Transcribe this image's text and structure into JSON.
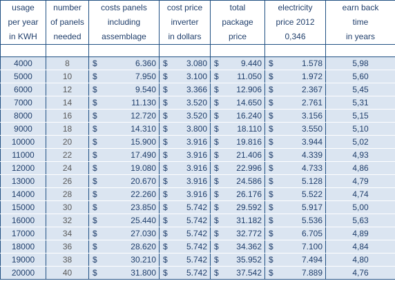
{
  "headers": [
    [
      "usage",
      "per year",
      "in KWH"
    ],
    [
      "number",
      "of panels",
      "needed"
    ],
    [
      "costs panels",
      "including",
      "assemblage"
    ],
    [
      "cost price",
      "inverter",
      "in dollars"
    ],
    [
      "total",
      "package",
      "price"
    ],
    [
      "electricity",
      "price 2012",
      "0,346"
    ],
    [
      "earn back",
      "time",
      "in years"
    ]
  ],
  "currency_symbol": "$",
  "rows": [
    {
      "usage": "4000",
      "panels": "8",
      "panel_cost": "6.360",
      "inverter": "3.080",
      "total": "9.440",
      "electricity": "1.578",
      "earn_back": "5,98"
    },
    {
      "usage": "5000",
      "panels": "10",
      "panel_cost": "7.950",
      "inverter": "3.100",
      "total": "11.050",
      "electricity": "1.972",
      "earn_back": "5,60"
    },
    {
      "usage": "6000",
      "panels": "12",
      "panel_cost": "9.540",
      "inverter": "3.366",
      "total": "12.906",
      "electricity": "2.367",
      "earn_back": "5,45"
    },
    {
      "usage": "7000",
      "panels": "14",
      "panel_cost": "11.130",
      "inverter": "3.520",
      "total": "14.650",
      "electricity": "2.761",
      "earn_back": "5,31"
    },
    {
      "usage": "8000",
      "panels": "16",
      "panel_cost": "12.720",
      "inverter": "3.520",
      "total": "16.240",
      "electricity": "3.156",
      "earn_back": "5,15"
    },
    {
      "usage": "9000",
      "panels": "18",
      "panel_cost": "14.310",
      "inverter": "3.800",
      "total": "18.110",
      "electricity": "3.550",
      "earn_back": "5,10"
    },
    {
      "usage": "10000",
      "panels": "20",
      "panel_cost": "15.900",
      "inverter": "3.916",
      "total": "19.816",
      "electricity": "3.944",
      "earn_back": "5,02"
    },
    {
      "usage": "11000",
      "panels": "22",
      "panel_cost": "17.490",
      "inverter": "3.916",
      "total": "21.406",
      "electricity": "4.339",
      "earn_back": "4,93"
    },
    {
      "usage": "12000",
      "panels": "24",
      "panel_cost": "19.080",
      "inverter": "3.916",
      "total": "22.996",
      "electricity": "4.733",
      "earn_back": "4,86"
    },
    {
      "usage": "13000",
      "panels": "26",
      "panel_cost": "20.670",
      "inverter": "3.916",
      "total": "24.586",
      "electricity": "5.128",
      "earn_back": "4,79"
    },
    {
      "usage": "14000",
      "panels": "28",
      "panel_cost": "22.260",
      "inverter": "3.916",
      "total": "26.176",
      "electricity": "5.522",
      "earn_back": "4,74"
    },
    {
      "usage": "15000",
      "panels": "30",
      "panel_cost": "23.850",
      "inverter": "5.742",
      "total": "29.592",
      "electricity": "5.917",
      "earn_back": "5,00"
    },
    {
      "usage": "16000",
      "panels": "32",
      "panel_cost": "25.440",
      "inverter": "5.742",
      "total": "31.182",
      "electricity": "5.536",
      "earn_back": "5,63"
    },
    {
      "usage": "17000",
      "panels": "34",
      "panel_cost": "27.030",
      "inverter": "5.742",
      "total": "32.772",
      "electricity": "6.705",
      "earn_back": "4,89"
    },
    {
      "usage": "18000",
      "panels": "36",
      "panel_cost": "28.620",
      "inverter": "5.742",
      "total": "34.362",
      "electricity": "7.100",
      "earn_back": "4,84"
    },
    {
      "usage": "19000",
      "panels": "38",
      "panel_cost": "30.210",
      "inverter": "5.742",
      "total": "35.952",
      "electricity": "7.494",
      "earn_back": "4,80"
    },
    {
      "usage": "20000",
      "panels": "40",
      "panel_cost": "31.800",
      "inverter": "5.742",
      "total": "37.542",
      "electricity": "7.889",
      "earn_back": "4,76"
    }
  ]
}
